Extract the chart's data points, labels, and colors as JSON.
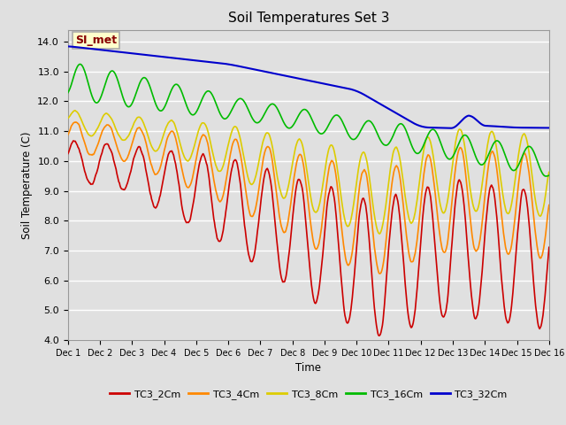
{
  "title": "Soil Temperatures Set 3",
  "xlabel": "Time",
  "ylabel": "Soil Temperature (C)",
  "ylim": [
    4.0,
    14.4
  ],
  "yticks": [
    4.0,
    5.0,
    6.0,
    7.0,
    8.0,
    9.0,
    10.0,
    11.0,
    12.0,
    13.0,
    14.0
  ],
  "xtick_labels": [
    "Dec 1",
    "Dec 2",
    "Dec 3",
    "Dec 4",
    "Dec 5",
    "Dec 6",
    "Dec 7",
    "Dec 8",
    "Dec 9",
    "Dec 10",
    "Dec 11",
    "Dec 12",
    "Dec 13",
    "Dec 14",
    "Dec 15",
    "Dec 16"
  ],
  "bg_color": "#e0e0e0",
  "grid_color": "#ffffff",
  "annotation_text": "SI_met",
  "annotation_bg": "#ffffcc",
  "annotation_border": "#aaaaaa",
  "annotation_text_color": "#880000",
  "series": {
    "TC3_2Cm": {
      "color": "#cc0000",
      "lw": 1.2
    },
    "TC3_4Cm": {
      "color": "#ff8800",
      "lw": 1.2
    },
    "TC3_8Cm": {
      "color": "#ddcc00",
      "lw": 1.2
    },
    "TC3_16Cm": {
      "color": "#00bb00",
      "lw": 1.2
    },
    "TC3_32Cm": {
      "color": "#0000cc",
      "lw": 1.5
    }
  }
}
